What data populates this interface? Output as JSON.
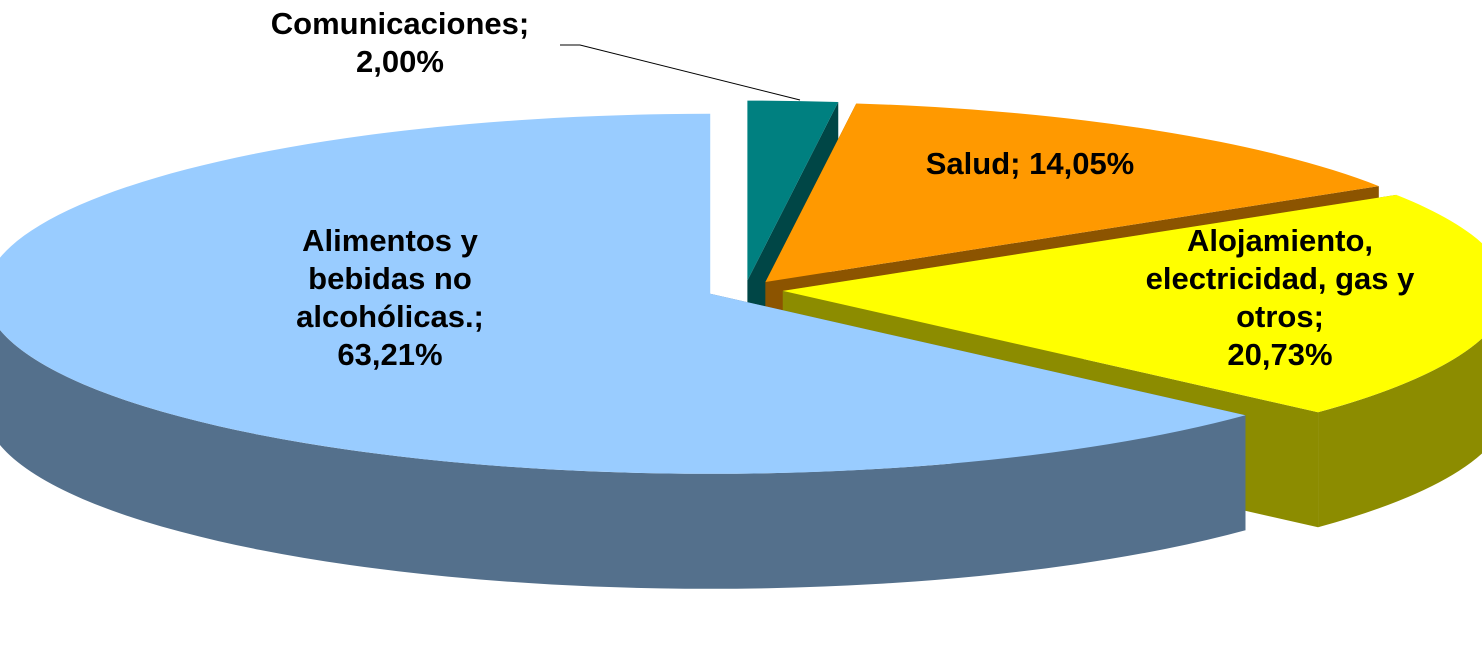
{
  "chart_data": {
    "type": "pie3d",
    "categories": [
      "Comunicaciones;",
      "Salud;",
      "Alojamiento, electricidad, gas y otros;",
      "Alimentos y bebidas no alcohólicas.;"
    ],
    "values": [
      2.0,
      14.05,
      20.73,
      63.21
    ],
    "value_labels": [
      "2,00%",
      "14,05%",
      "20,73%",
      "63,21%"
    ],
    "colors": [
      "#008080",
      "#FF9900",
      "#FFFF00",
      "#99CCFF"
    ]
  }
}
